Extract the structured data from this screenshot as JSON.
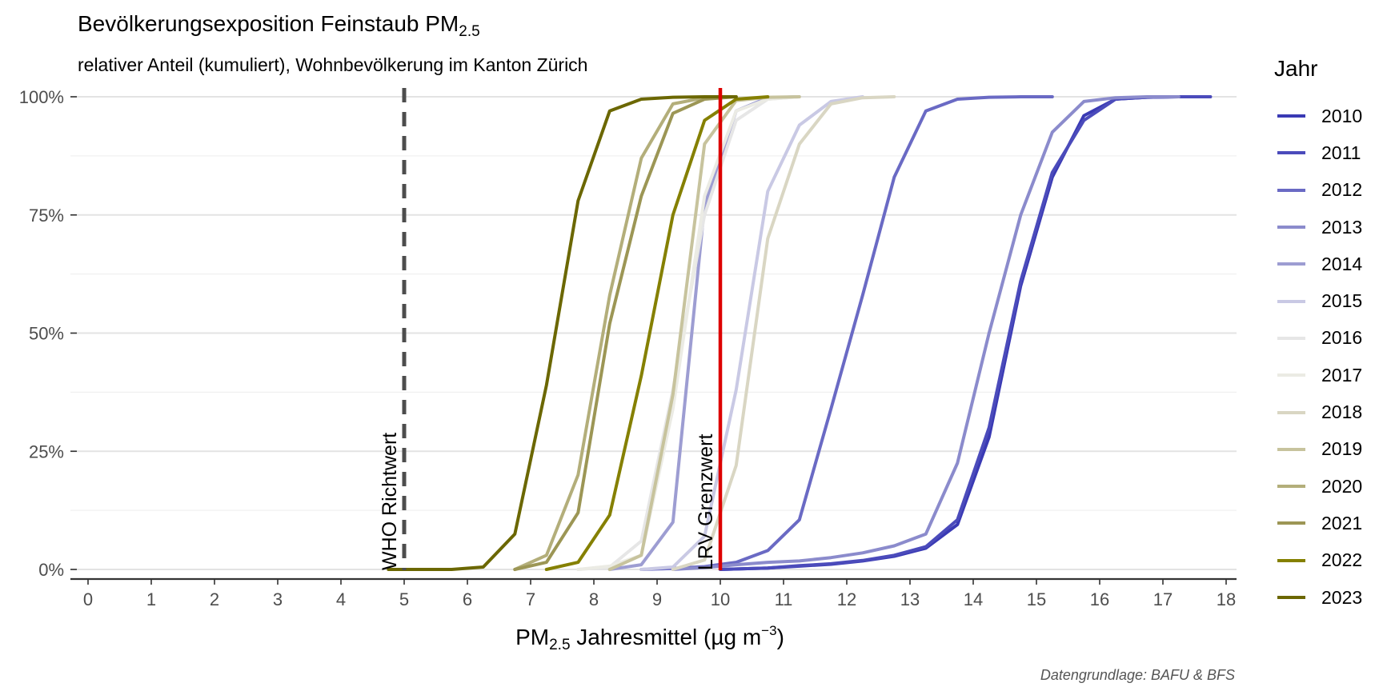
{
  "title": "Bevölkerungsexposition Feinstaub PM",
  "title_sub": "2.5",
  "subtitle": "relativer Anteil (kumuliert), Wohnbevölkerung im Kanton Zürich",
  "caption": "Datengrundlage: BAFU & BFS",
  "xlabel": {
    "pre": "PM",
    "sub": "2.5",
    "mid": " Jahresmittel (µg m",
    "sup": "−3",
    "post": ")"
  },
  "legend_title": "Jahr",
  "chart_data": {
    "type": "line",
    "xlim": [
      0,
      18
    ],
    "ylim": [
      0,
      100
    ],
    "x_ticks": [
      0,
      1,
      2,
      3,
      4,
      5,
      6,
      7,
      8,
      9,
      10,
      11,
      12,
      13,
      14,
      15,
      16,
      17,
      18
    ],
    "y_ticks": [
      0,
      25,
      50,
      75,
      100
    ],
    "y_tick_labels": [
      "0%",
      "25%",
      "50%",
      "75%",
      "100%"
    ],
    "grid": true,
    "legend_position": "right",
    "reference_lines": [
      {
        "x": 5,
        "label": "WHO Richtwert",
        "style": "dashed",
        "color": "#4d4d4d"
      },
      {
        "x": 10,
        "label": "LRV Grenzwert",
        "style": "solid",
        "color": "#dd0000"
      }
    ],
    "series": [
      {
        "name": "2010",
        "color": "#3a3ab4",
        "x": [
          10.0,
          10.75,
          11.25,
          11.75,
          12.25,
          12.75,
          13.25,
          13.75,
          14.25,
          14.75,
          15.25,
          15.75,
          16.25,
          16.75,
          17.25,
          17.75
        ],
        "y": [
          0,
          0.3,
          0.7,
          1.1,
          1.8,
          2.8,
          4.5,
          9.5,
          28,
          60,
          83,
          96,
          99.5,
          99.9,
          100,
          100
        ]
      },
      {
        "name": "2011",
        "color": "#4b4bbb",
        "x": [
          10.0,
          10.75,
          11.25,
          11.75,
          12.25,
          12.75,
          13.25,
          13.75,
          14.25,
          14.75,
          15.25,
          15.75,
          16.25,
          16.75,
          17.25,
          17.75
        ],
        "y": [
          0,
          0.3,
          0.8,
          1.2,
          1.9,
          3.0,
          4.8,
          10.5,
          30,
          61,
          84,
          95,
          99.5,
          99.9,
          100,
          100
        ]
      },
      {
        "name": "2012",
        "color": "#6a6ac4",
        "x": [
          8.75,
          9.25,
          9.75,
          10.25,
          10.75,
          11.25,
          11.75,
          12.25,
          12.75,
          13.25,
          13.75,
          14.25,
          14.75,
          15.25
        ],
        "y": [
          0,
          0.2,
          0.6,
          1.5,
          4,
          10.5,
          34,
          58,
          83,
          97,
          99.5,
          99.9,
          100,
          100
        ]
      },
      {
        "name": "2013",
        "color": "#8b8bcc",
        "x": [
          9.25,
          9.75,
          10.25,
          10.75,
          11.25,
          11.75,
          12.25,
          12.75,
          13.25,
          13.75,
          14.25,
          14.75,
          15.25,
          15.75,
          16.25,
          16.75,
          17.25
        ],
        "y": [
          0,
          0.4,
          1,
          1.5,
          1.8,
          2.5,
          3.5,
          5,
          7.5,
          22.5,
          50,
          75,
          92.5,
          99,
          99.8,
          100,
          100
        ]
      },
      {
        "name": "2014",
        "color": "#9d9dd2",
        "x": [
          8.25,
          8.75,
          9.25,
          9.75,
          10.25,
          10.75,
          11.25
        ],
        "y": [
          0,
          1,
          10,
          77,
          97,
          99.8,
          100
        ]
      },
      {
        "name": "2015",
        "color": "#c9c9e4",
        "x": [
          8.75,
          9.25,
          9.75,
          10.25,
          10.75,
          11.25,
          11.75,
          12.25
        ],
        "y": [
          0,
          0.5,
          7,
          38,
          80,
          94,
          99,
          100
        ]
      },
      {
        "name": "2016",
        "color": "#e6e6e6",
        "x": [
          7.75,
          8.25,
          8.75,
          9.25,
          9.75,
          10.25,
          10.75,
          11.25
        ],
        "y": [
          0,
          0.5,
          6,
          38,
          75,
          95,
          99.5,
          100
        ]
      },
      {
        "name": "2017",
        "color": "#ebebe4",
        "x": [
          7.75,
          8.25,
          8.75,
          9.25,
          9.75,
          10.25,
          10.75,
          11.25
        ],
        "y": [
          0,
          0.7,
          3,
          34,
          79,
          97,
          99.5,
          100
        ]
      },
      {
        "name": "2018",
        "color": "#d9d6c3",
        "x": [
          9.25,
          9.75,
          10.25,
          10.75,
          11.25,
          11.75,
          12.25,
          12.75
        ],
        "y": [
          0,
          2,
          22,
          70,
          90,
          98.5,
          99.8,
          100
        ]
      },
      {
        "name": "2019",
        "color": "#c7c39d",
        "x": [
          8.25,
          8.75,
          9.25,
          9.75,
          10.25,
          10.75,
          11.25
        ],
        "y": [
          0,
          3,
          37,
          90,
          99.2,
          99.9,
          100
        ]
      },
      {
        "name": "2020",
        "color": "#b3ae7a",
        "x": [
          6.75,
          7.25,
          7.75,
          8.25,
          8.75,
          9.25,
          9.75,
          10.25
        ],
        "y": [
          0,
          3,
          20,
          58,
          87,
          98.5,
          99.8,
          100
        ]
      },
      {
        "name": "2021",
        "color": "#9c9655",
        "x": [
          6.75,
          7.25,
          7.75,
          8.25,
          8.75,
          9.25,
          9.75,
          10.25
        ],
        "y": [
          0,
          1.5,
          12,
          52,
          79,
          96.5,
          99.5,
          100
        ]
      },
      {
        "name": "2022",
        "color": "#858000",
        "x": [
          7.25,
          7.75,
          8.25,
          8.75,
          9.25,
          9.75,
          10.25,
          10.75
        ],
        "y": [
          0,
          1.5,
          11.5,
          41,
          75,
          95,
          99.5,
          100
        ]
      },
      {
        "name": "2023",
        "color": "#6b6700",
        "x": [
          4.75,
          5.75,
          6.25,
          6.75,
          7.25,
          7.75,
          8.25,
          8.75,
          9.25,
          9.75,
          10.25
        ],
        "y": [
          0,
          0,
          0.5,
          7.5,
          39,
          78,
          97,
          99.5,
          99.9,
          100,
          100
        ]
      }
    ]
  }
}
